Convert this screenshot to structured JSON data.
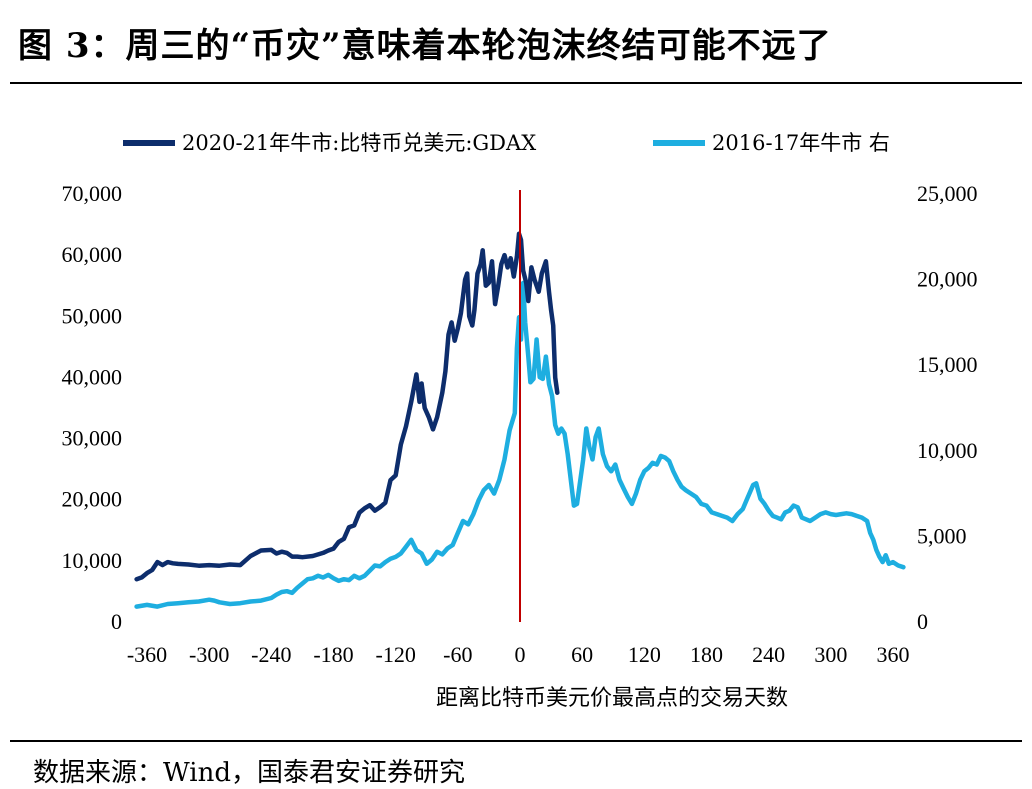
{
  "header": {
    "title": "图 3：周三的“币灾”意味着本轮泡沫终结可能不远了"
  },
  "footer": {
    "source": "数据来源：Wind，国泰君安证券研究"
  },
  "chart_data": {
    "type": "line",
    "xlabel": "距离比特币美元价最高点的交易天数",
    "x_ticks": [
      "-360",
      "-300",
      "-240",
      "-180",
      "-120",
      "-60",
      "0",
      "60",
      "120",
      "180",
      "240",
      "300",
      "360"
    ],
    "xlim": [
      -370,
      375
    ],
    "y_left": {
      "ylim": [
        0,
        70000
      ],
      "ticks": [
        "0",
        "10,000",
        "20,000",
        "30,000",
        "40,000",
        "50,000",
        "60,000",
        "70,000"
      ]
    },
    "y_right": {
      "ylim": [
        0,
        25000
      ],
      "ticks": [
        "0",
        "5,000",
        "10,000",
        "15,000",
        "20,000",
        "25,000"
      ]
    },
    "vertical_marker": {
      "x": 0,
      "color": "#C00000"
    },
    "legend_position": "top",
    "grid": false,
    "series": [
      {
        "name": "2020-21年牛市:比特币兑美元:GDAX",
        "axis": "left",
        "color": "#0D2D6C",
        "points": [
          [
            -370,
            7000
          ],
          [
            -365,
            7300
          ],
          [
            -360,
            8000
          ],
          [
            -355,
            8500
          ],
          [
            -350,
            9800
          ],
          [
            -345,
            9300
          ],
          [
            -340,
            9800
          ],
          [
            -335,
            9600
          ],
          [
            -330,
            9500
          ],
          [
            -320,
            9400
          ],
          [
            -310,
            9200
          ],
          [
            -300,
            9300
          ],
          [
            -290,
            9200
          ],
          [
            -280,
            9400
          ],
          [
            -270,
            9300
          ],
          [
            -260,
            10800
          ],
          [
            -250,
            11700
          ],
          [
            -240,
            11800
          ],
          [
            -235,
            11200
          ],
          [
            -230,
            11500
          ],
          [
            -225,
            11300
          ],
          [
            -220,
            10700
          ],
          [
            -215,
            10700
          ],
          [
            -210,
            10600
          ],
          [
            -200,
            10800
          ],
          [
            -190,
            11300
          ],
          [
            -185,
            11700
          ],
          [
            -180,
            12000
          ],
          [
            -175,
            13100
          ],
          [
            -170,
            13600
          ],
          [
            -165,
            15500
          ],
          [
            -160,
            15800
          ],
          [
            -155,
            17900
          ],
          [
            -150,
            18600
          ],
          [
            -145,
            19100
          ],
          [
            -140,
            18200
          ],
          [
            -135,
            18800
          ],
          [
            -130,
            19500
          ],
          [
            -125,
            23200
          ],
          [
            -120,
            24000
          ],
          [
            -115,
            29000
          ],
          [
            -110,
            32000
          ],
          [
            -105,
            36000
          ],
          [
            -100,
            40500
          ],
          [
            -97,
            36000
          ],
          [
            -95,
            39000
          ],
          [
            -92,
            35000
          ],
          [
            -88,
            33500
          ],
          [
            -84,
            31500
          ],
          [
            -80,
            33500
          ],
          [
            -75,
            37500
          ],
          [
            -72,
            41000
          ],
          [
            -69,
            47000
          ],
          [
            -66,
            49000
          ],
          [
            -63,
            46000
          ],
          [
            -60,
            48000
          ],
          [
            -57,
            50500
          ],
          [
            -53,
            56000
          ],
          [
            -51,
            57000
          ],
          [
            -49,
            50000
          ],
          [
            -46,
            48500
          ],
          [
            -44,
            51000
          ],
          [
            -41,
            57000
          ],
          [
            -38,
            58500
          ],
          [
            -36,
            60800
          ],
          [
            -33,
            55000
          ],
          [
            -30,
            55500
          ],
          [
            -27,
            59000
          ],
          [
            -24,
            52000
          ],
          [
            -21,
            55000
          ],
          [
            -18,
            58500
          ],
          [
            -15,
            60000
          ],
          [
            -12,
            58000
          ],
          [
            -9,
            59500
          ],
          [
            -6,
            56500
          ],
          [
            -3,
            59800
          ],
          [
            -1,
            63500
          ],
          [
            1,
            62500
          ],
          [
            3,
            57500
          ],
          [
            6,
            55500
          ],
          [
            8,
            52500
          ],
          [
            11,
            58000
          ],
          [
            14,
            56000
          ],
          [
            18,
            54000
          ],
          [
            21,
            57000
          ],
          [
            25,
            59000
          ],
          [
            28,
            54000
          ],
          [
            30,
            51000
          ],
          [
            32,
            48500
          ],
          [
            34,
            40000
          ],
          [
            36,
            37500
          ]
        ]
      },
      {
        "name": "2016-17年牛市 右",
        "axis": "right",
        "color": "#1EAEE0",
        "points": [
          [
            -370,
            900
          ],
          [
            -360,
            1000
          ],
          [
            -350,
            900
          ],
          [
            -340,
            1050
          ],
          [
            -330,
            1100
          ],
          [
            -320,
            1150
          ],
          [
            -310,
            1200
          ],
          [
            -300,
            1300
          ],
          [
            -295,
            1250
          ],
          [
            -290,
            1150
          ],
          [
            -280,
            1050
          ],
          [
            -270,
            1100
          ],
          [
            -260,
            1200
          ],
          [
            -250,
            1250
          ],
          [
            -240,
            1400
          ],
          [
            -235,
            1600
          ],
          [
            -230,
            1750
          ],
          [
            -225,
            1800
          ],
          [
            -220,
            1700
          ],
          [
            -215,
            2000
          ],
          [
            -210,
            2250
          ],
          [
            -205,
            2500
          ],
          [
            -200,
            2550
          ],
          [
            -195,
            2700
          ],
          [
            -190,
            2600
          ],
          [
            -185,
            2750
          ],
          [
            -180,
            2550
          ],
          [
            -175,
            2400
          ],
          [
            -170,
            2500
          ],
          [
            -165,
            2450
          ],
          [
            -160,
            2700
          ],
          [
            -155,
            2550
          ],
          [
            -150,
            2700
          ],
          [
            -145,
            3000
          ],
          [
            -140,
            3300
          ],
          [
            -135,
            3250
          ],
          [
            -130,
            3500
          ],
          [
            -125,
            3700
          ],
          [
            -120,
            3800
          ],
          [
            -115,
            4000
          ],
          [
            -110,
            4400
          ],
          [
            -105,
            4800
          ],
          [
            -100,
            4200
          ],
          [
            -95,
            4000
          ],
          [
            -90,
            3400
          ],
          [
            -85,
            3650
          ],
          [
            -80,
            4100
          ],
          [
            -75,
            3950
          ],
          [
            -70,
            4300
          ],
          [
            -65,
            4500
          ],
          [
            -60,
            5200
          ],
          [
            -55,
            5900
          ],
          [
            -50,
            5700
          ],
          [
            -45,
            6300
          ],
          [
            -40,
            7100
          ],
          [
            -35,
            7700
          ],
          [
            -30,
            8000
          ],
          [
            -25,
            7500
          ],
          [
            -20,
            8300
          ],
          [
            -15,
            9500
          ],
          [
            -10,
            11200
          ],
          [
            -5,
            12200
          ],
          [
            -3,
            16000
          ],
          [
            -1,
            17800
          ],
          [
            1,
            16500
          ],
          [
            3,
            19800
          ],
          [
            5,
            17500
          ],
          [
            8,
            15500
          ],
          [
            10,
            14000
          ],
          [
            13,
            14200
          ],
          [
            16,
            16500
          ],
          [
            19,
            14300
          ],
          [
            22,
            14200
          ],
          [
            25,
            15500
          ],
          [
            28,
            13900
          ],
          [
            31,
            13200
          ],
          [
            34,
            11500
          ],
          [
            37,
            11000
          ],
          [
            40,
            11300
          ],
          [
            43,
            11000
          ],
          [
            46,
            9800
          ],
          [
            49,
            8300
          ],
          [
            52,
            6800
          ],
          [
            55,
            6900
          ],
          [
            58,
            8200
          ],
          [
            61,
            9500
          ],
          [
            64,
            11300
          ],
          [
            67,
            10200
          ],
          [
            70,
            9500
          ],
          [
            73,
            10800
          ],
          [
            76,
            11300
          ],
          [
            80,
            9800
          ],
          [
            84,
            9100
          ],
          [
            88,
            8800
          ],
          [
            92,
            9200
          ],
          [
            96,
            8300
          ],
          [
            100,
            7800
          ],
          [
            104,
            7300
          ],
          [
            108,
            6900
          ],
          [
            112,
            7500
          ],
          [
            116,
            8300
          ],
          [
            120,
            8800
          ],
          [
            124,
            9000
          ],
          [
            128,
            9300
          ],
          [
            132,
            9200
          ],
          [
            136,
            9700
          ],
          [
            140,
            9600
          ],
          [
            144,
            9400
          ],
          [
            148,
            8800
          ],
          [
            152,
            8300
          ],
          [
            156,
            7900
          ],
          [
            160,
            7700
          ],
          [
            165,
            7500
          ],
          [
            170,
            7300
          ],
          [
            175,
            6900
          ],
          [
            180,
            6800
          ],
          [
            185,
            6400
          ],
          [
            190,
            6300
          ],
          [
            195,
            6200
          ],
          [
            200,
            6100
          ],
          [
            205,
            5900
          ],
          [
            210,
            6300
          ],
          [
            215,
            6600
          ],
          [
            220,
            7300
          ],
          [
            225,
            8000
          ],
          [
            228,
            8100
          ],
          [
            232,
            7200
          ],
          [
            236,
            6900
          ],
          [
            240,
            6500
          ],
          [
            244,
            6200
          ],
          [
            248,
            6100
          ],
          [
            252,
            6000
          ],
          [
            256,
            6400
          ],
          [
            260,
            6500
          ],
          [
            264,
            6800
          ],
          [
            268,
            6700
          ],
          [
            272,
            6100
          ],
          [
            276,
            6000
          ],
          [
            280,
            5900
          ],
          [
            285,
            6100
          ],
          [
            290,
            6300
          ],
          [
            295,
            6400
          ],
          [
            300,
            6300
          ],
          [
            305,
            6250
          ],
          [
            310,
            6300
          ],
          [
            315,
            6350
          ],
          [
            320,
            6300
          ],
          [
            325,
            6200
          ],
          [
            330,
            6100
          ],
          [
            335,
            5900
          ],
          [
            338,
            5200
          ],
          [
            341,
            4800
          ],
          [
            344,
            4200
          ],
          [
            347,
            3800
          ],
          [
            350,
            3500
          ],
          [
            353,
            3900
          ],
          [
            356,
            3400
          ],
          [
            360,
            3500
          ],
          [
            365,
            3300
          ],
          [
            370,
            3200
          ]
        ]
      }
    ]
  }
}
